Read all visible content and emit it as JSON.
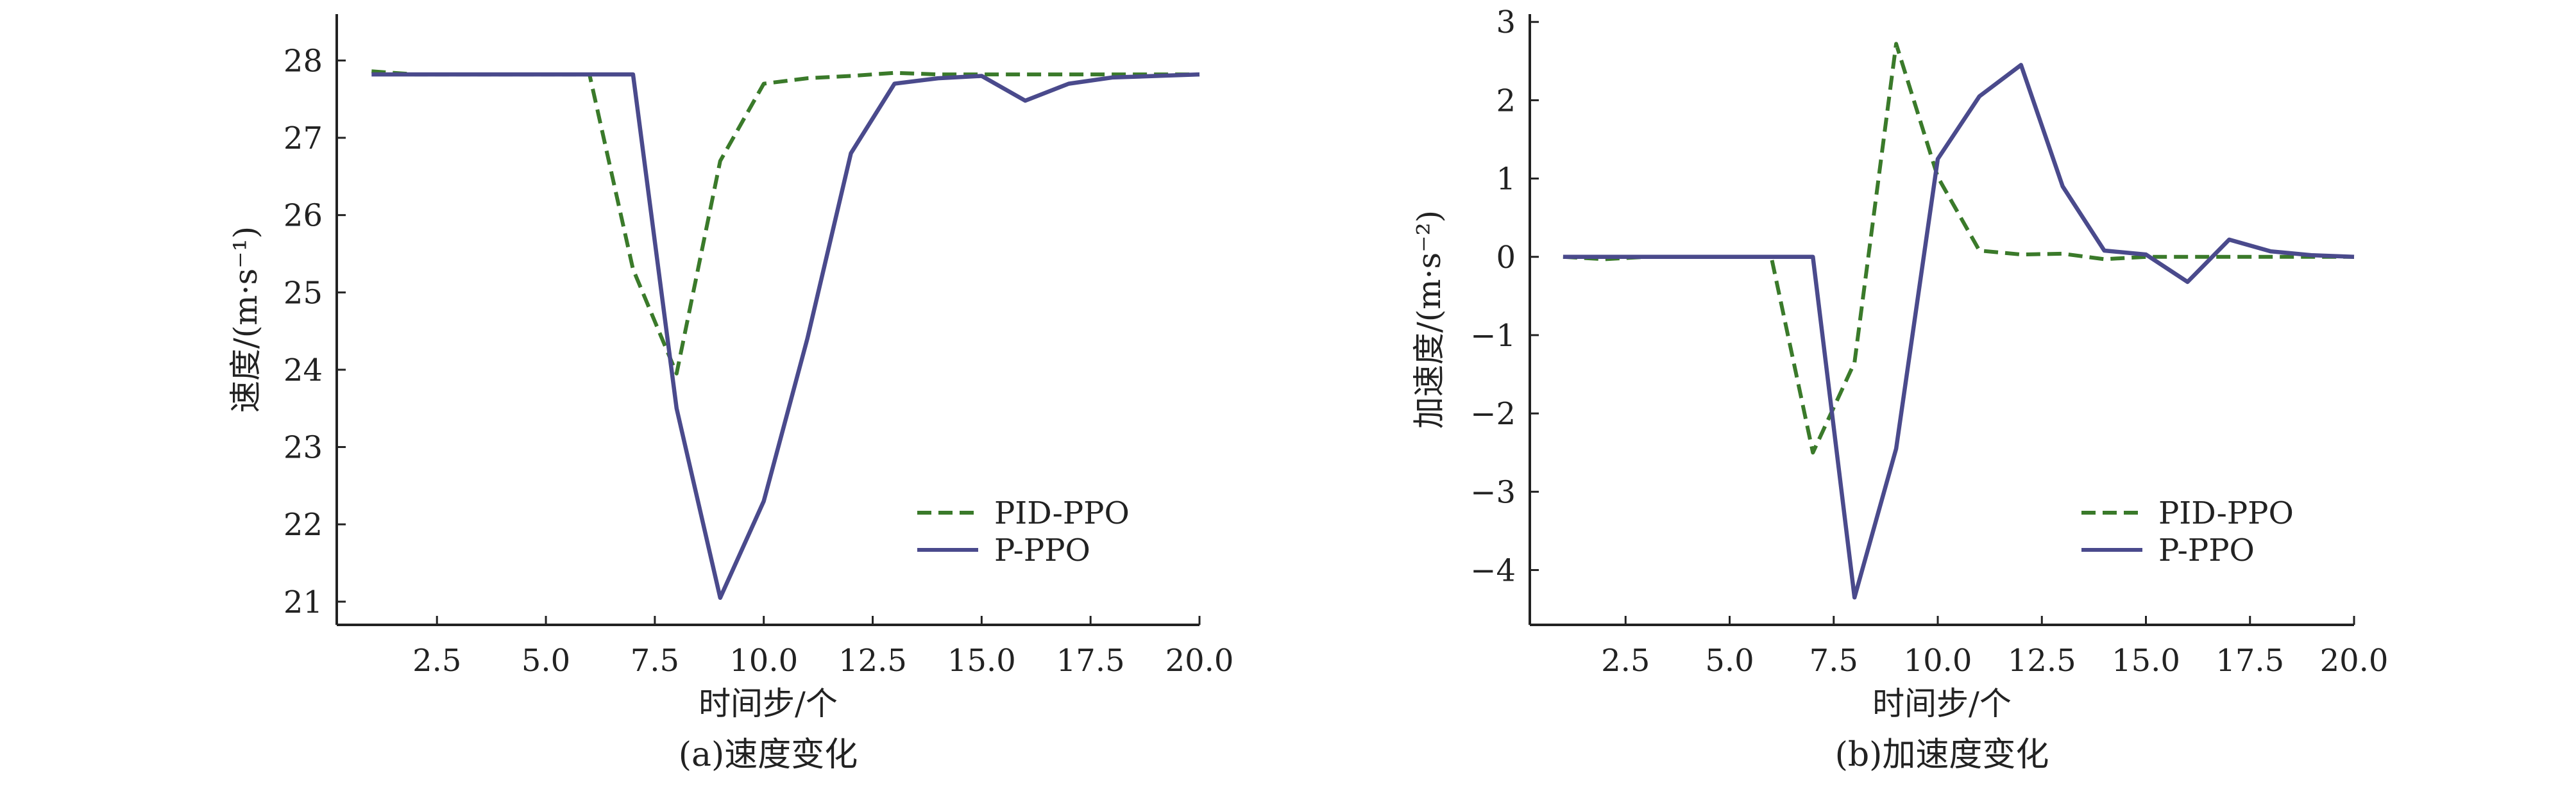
{
  "chart_data": [
    {
      "type": "line",
      "caption": "(a)速度变化",
      "xlabel": "时间步/个",
      "ylabel": "速度/(m·s⁻¹)",
      "xlim": [
        0.2,
        20.0
      ],
      "ylim": [
        20.7,
        28.6
      ],
      "xticks": [
        2.5,
        5.0,
        7.5,
        10.0,
        12.5,
        15.0,
        17.5,
        20.0
      ],
      "xtick_labels": [
        "2.5",
        "5.0",
        "7.5",
        "10.0",
        "12.5",
        "15.0",
        "17.5",
        "20.0"
      ],
      "yticks": [
        21,
        22,
        23,
        24,
        25,
        26,
        27,
        28
      ],
      "ytick_labels": [
        "21",
        "22",
        "23",
        "24",
        "25",
        "26",
        "27",
        "28"
      ],
      "legend_position": "lower-right",
      "x": [
        1,
        2,
        3,
        4,
        5,
        6,
        7,
        8,
        9,
        10,
        11,
        12,
        13,
        14,
        15,
        16,
        17,
        18,
        19,
        20
      ],
      "series": [
        {
          "name": "PID-PPO",
          "color": "#3a7a2a",
          "dash": true,
          "values": [
            27.86,
            27.82,
            27.82,
            27.82,
            27.82,
            27.82,
            25.3,
            23.95,
            26.7,
            27.7,
            27.77,
            27.8,
            27.84,
            27.82,
            27.82,
            27.82,
            27.82,
            27.82,
            27.82,
            27.82
          ]
        },
        {
          "name": "P-PPO",
          "color": "#4a4a8c",
          "dash": false,
          "values": [
            27.82,
            27.82,
            27.82,
            27.82,
            27.82,
            27.82,
            27.82,
            23.5,
            21.05,
            22.3,
            24.4,
            26.8,
            27.7,
            27.77,
            27.8,
            27.48,
            27.7,
            27.78,
            27.8,
            27.82
          ]
        }
      ]
    },
    {
      "type": "line",
      "caption": "(b)加速度变化",
      "xlabel": "时间步/个",
      "ylabel": "加速度/(m·s⁻²)",
      "xlim": [
        0.2,
        20.0
      ],
      "ylim": [
        -4.7,
        3.1
      ],
      "xticks": [
        2.5,
        5.0,
        7.5,
        10.0,
        12.5,
        15.0,
        17.5,
        20.0
      ],
      "xtick_labels": [
        "2.5",
        "5.0",
        "7.5",
        "10.0",
        "12.5",
        "15.0",
        "17.5",
        "20.0"
      ],
      "yticks": [
        -4,
        -3,
        -2,
        -1,
        0,
        1,
        2,
        3
      ],
      "ytick_labels": [
        "−4",
        "−3",
        "−2",
        "−1",
        "0",
        "1",
        "2",
        "3"
      ],
      "legend_position": "lower-right",
      "x": [
        1,
        2,
        3,
        4,
        5,
        6,
        7,
        8,
        9,
        10,
        11,
        12,
        13,
        14,
        15,
        16,
        17,
        18,
        19,
        20
      ],
      "series": [
        {
          "name": "PID-PPO",
          "color": "#3a7a2a",
          "dash": true,
          "values": [
            0.0,
            -0.03,
            0.0,
            0.0,
            0.0,
            0.0,
            -2.5,
            -1.35,
            2.72,
            1.02,
            0.08,
            0.03,
            0.04,
            -0.03,
            0.0,
            0.0,
            0.0,
            0.0,
            0.0,
            0.0
          ]
        },
        {
          "name": "P-PPO",
          "color": "#4a4a8c",
          "dash": false,
          "values": [
            0.0,
            0.0,
            0.0,
            0.0,
            0.0,
            0.0,
            0.0,
            -4.35,
            -2.45,
            1.25,
            2.05,
            2.45,
            0.9,
            0.08,
            0.03,
            -0.32,
            0.22,
            0.07,
            0.02,
            0.0
          ]
        }
      ]
    }
  ]
}
